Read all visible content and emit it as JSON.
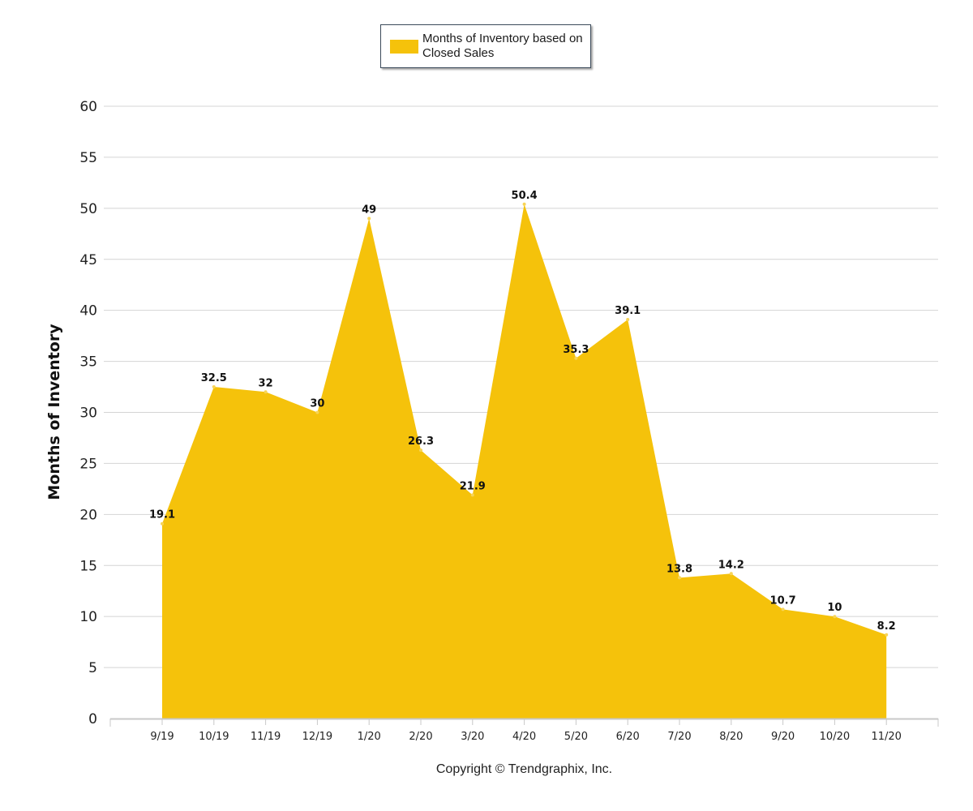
{
  "chart_data": {
    "type": "area",
    "categories": [
      "9/19",
      "10/19",
      "11/19",
      "12/19",
      "1/20",
      "2/20",
      "3/20",
      "4/20",
      "5/20",
      "6/20",
      "7/20",
      "8/20",
      "9/20",
      "10/20",
      "11/20"
    ],
    "series": [
      {
        "name": "Months of Inventory based on Closed Sales",
        "values": [
          19.1,
          32.5,
          32,
          30,
          49,
          26.3,
          21.9,
          50.4,
          35.3,
          39.1,
          13.8,
          14.2,
          10.7,
          10,
          8.2
        ],
        "color": "#f5c20b"
      }
    ],
    "data_labels": [
      "19.1",
      "32.5",
      "32",
      "30",
      "49",
      "26.3",
      "21.9",
      "50.4",
      "35.3",
      "39.1",
      "13.8",
      "14.2",
      "10.7",
      "10",
      "8.2"
    ],
    "y_ticks": [
      "0",
      "5",
      "10",
      "15",
      "20",
      "25",
      "30",
      "35",
      "40",
      "45",
      "50",
      "55",
      "60"
    ],
    "ylabel": "Months of Inventory",
    "xlabel": "",
    "ylim": [
      0,
      60
    ],
    "grid": true,
    "legend_position": "top-center"
  },
  "legend": {
    "label": "Months of Inventory based on Closed Sales"
  },
  "footer": {
    "copyright": "Copyright © Trendgraphix, Inc."
  },
  "colors": {
    "area": "#f5c20b",
    "grid": "#d4d4d4",
    "axis": "#c8c8c8"
  }
}
